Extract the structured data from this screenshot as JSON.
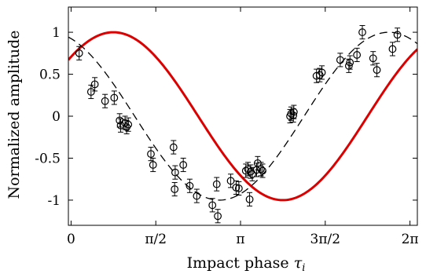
{
  "chart_data": {
    "type": "scatter",
    "xlabel_text": "Impact phase ",
    "xlabel_symbol": "τ",
    "xlabel_subscript": "i",
    "ylabel": "Normalized amplitude",
    "xlim": [
      -0.05,
      6.42
    ],
    "ylim": [
      -1.3,
      1.3
    ],
    "x_ticks": [
      {
        "value": 0,
        "label": "0"
      },
      {
        "value": 1.5708,
        "label": "π/2"
      },
      {
        "value": 3.1416,
        "label": "π"
      },
      {
        "value": 4.7124,
        "label": "3π/2"
      },
      {
        "value": 6.2832,
        "label": "2π"
      }
    ],
    "y_ticks": [
      {
        "value": 1,
        "label": "1"
      },
      {
        "value": 0.5,
        "label": "0.5"
      },
      {
        "value": 0,
        "label": "0"
      },
      {
        "value": -0.5,
        "label": "-0.5"
      },
      {
        "value": -1,
        "label": "-1"
      }
    ],
    "series": [
      {
        "kind": "scatter-errorbars",
        "color": "#000000",
        "marker": "open-circle",
        "error": 0.08,
        "points": [
          [
            0.15,
            0.75
          ],
          [
            0.37,
            0.29
          ],
          [
            0.44,
            0.38
          ],
          [
            0.63,
            0.18
          ],
          [
            0.8,
            0.22
          ],
          [
            0.9,
            -0.05
          ],
          [
            0.92,
            -0.11
          ],
          [
            1.0,
            -0.08
          ],
          [
            1.03,
            -0.13
          ],
          [
            1.06,
            -0.1
          ],
          [
            1.48,
            -0.45
          ],
          [
            1.52,
            -0.58
          ],
          [
            1.9,
            -0.37
          ],
          [
            1.93,
            -0.67
          ],
          [
            1.92,
            -0.87
          ],
          [
            2.08,
            -0.58
          ],
          [
            2.2,
            -0.83
          ],
          [
            2.33,
            -0.95
          ],
          [
            2.62,
            -1.06
          ],
          [
            2.72,
            -1.19
          ],
          [
            2.7,
            -0.81
          ],
          [
            2.96,
            -0.77
          ],
          [
            3.06,
            -0.85
          ],
          [
            3.11,
            -0.86
          ],
          [
            3.24,
            -0.65
          ],
          [
            3.28,
            -0.63
          ],
          [
            3.31,
            -0.99
          ],
          [
            3.33,
            -0.66
          ],
          [
            3.36,
            -0.69
          ],
          [
            3.44,
            -0.64
          ],
          [
            3.46,
            -0.56
          ],
          [
            3.52,
            -0.63
          ],
          [
            3.55,
            -0.65
          ],
          [
            4.06,
            0.0
          ],
          [
            4.08,
            0.03
          ],
          [
            4.12,
            0.01
          ],
          [
            4.13,
            0.05
          ],
          [
            4.55,
            0.48
          ],
          [
            4.61,
            0.49
          ],
          [
            4.65,
            0.52
          ],
          [
            4.99,
            0.67
          ],
          [
            5.15,
            0.6
          ],
          [
            5.17,
            0.64
          ],
          [
            5.3,
            0.73
          ],
          [
            5.4,
            1.0
          ],
          [
            5.6,
            0.69
          ],
          [
            5.67,
            0.55
          ],
          [
            5.96,
            0.8
          ],
          [
            6.05,
            0.97
          ]
        ]
      },
      {
        "kind": "fit-dashed",
        "color": "#000000",
        "amplitude": 1.0,
        "phase_of_minimum": 2.75
      },
      {
        "kind": "sine",
        "color": "#dd0000",
        "amplitude": 1.0,
        "phase_of_maximum": 0.785
      }
    ]
  }
}
